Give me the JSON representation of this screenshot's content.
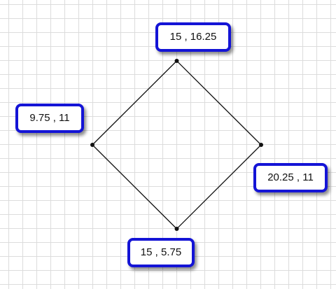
{
  "diagram": {
    "vertices": [
      {
        "id": "top",
        "x": 15,
        "y": 16.25,
        "label": "15 , 16.25"
      },
      {
        "id": "right",
        "x": 20.25,
        "y": 11,
        "label": "20.25 , 11"
      },
      {
        "id": "bottom",
        "x": 15,
        "y": 5.75,
        "label": "15 , 5.75"
      },
      {
        "id": "left",
        "x": 9.75,
        "y": 11,
        "label": "9.75 , 11"
      }
    ],
    "colors": {
      "label_border": "#1414d6",
      "edge": "#111111",
      "grid": "#dcdcdc"
    }
  }
}
